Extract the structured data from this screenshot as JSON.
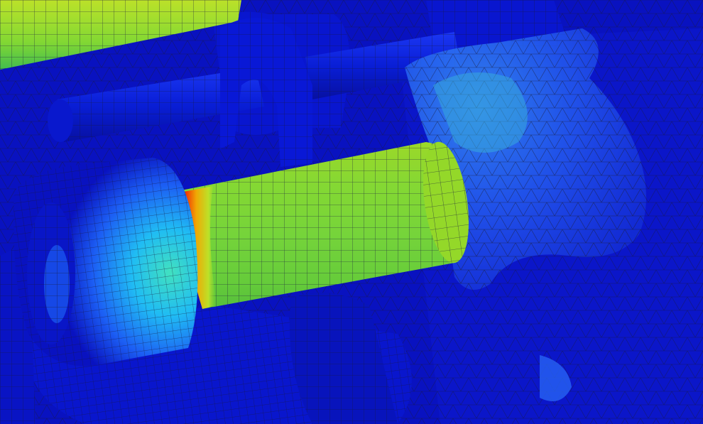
{
  "viewport": {
    "description_visible_text": "",
    "background_color": "#0a14c8",
    "mesh_line_color": "#1a1a40",
    "fea_colormap": [
      "#0a14c8",
      "#1e64ff",
      "#22c8ff",
      "#46f0a0",
      "#8cf032",
      "#c8f028",
      "#ffb400",
      "#ff3c00",
      "#c81400"
    ]
  }
}
